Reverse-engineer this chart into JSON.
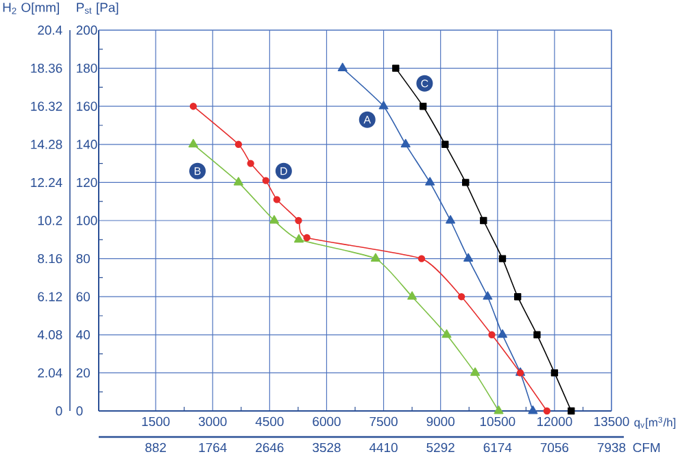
{
  "chart_data": {
    "type": "line",
    "xlabel": "q$_{v}$[m$^{3}$/h]",
    "ylabel": "P$_{st}$ [Pa]",
    "y2label": "H$_{2}$ O[mm]",
    "x2label": "CFM",
    "xlim": [
      0,
      13500
    ],
    "xticks": [
      1500,
      3000,
      4500,
      6000,
      7500,
      9000,
      10500,
      12000,
      13500
    ],
    "x2lim": [
      0,
      7938
    ],
    "x2ticks": [
      882,
      1764,
      2646,
      3528,
      4410,
      5292,
      6174,
      7056,
      7938
    ],
    "ylim": [
      0,
      200
    ],
    "yticks": [
      0,
      20,
      40,
      60,
      80,
      100,
      120,
      140,
      160,
      180,
      200
    ],
    "y2lim": [
      0,
      20.4
    ],
    "y2ticks": [
      0,
      2.04,
      4.08,
      6.12,
      8.16,
      10.2,
      12.24,
      14.28,
      16.32,
      18.36,
      20.4
    ],
    "grid": true,
    "series": [
      {
        "color": "#2f5fae",
        "marker": "triangle",
        "x": [
          6420,
          7500,
          8080,
          8720,
          9260,
          9730,
          10240,
          10630,
          11100,
          11430
        ],
        "values": [
          180,
          160,
          140,
          120,
          100,
          80,
          60,
          40,
          20,
          0
        ]
      },
      {
        "color": "#7cc043",
        "marker": "triangle",
        "x": [
          2490,
          3680,
          4620,
          5270,
          7290,
          8250,
          9160,
          9910,
          10530
        ],
        "values": [
          140,
          120,
          100,
          90,
          80,
          60,
          40,
          20,
          0
        ]
      },
      {
        "color": "#000000",
        "marker": "square",
        "x": [
          7820,
          8540,
          9120,
          9660,
          10130,
          10630,
          11030,
          11540,
          12000,
          12440
        ],
        "values": [
          180,
          160,
          140,
          120,
          100,
          80,
          60,
          40,
          20,
          0
        ]
      },
      {
        "color": "#e62b2b",
        "marker": "circle",
        "x": [
          2490,
          3680,
          4000,
          4400,
          4690,
          5260,
          5480,
          8500,
          9550,
          10350,
          11100,
          11800
        ],
        "values": [
          160,
          140,
          130,
          121,
          111,
          100,
          91,
          80,
          60,
          40,
          20,
          0
        ]
      }
    ],
    "annotations": [
      {
        "text": "A",
        "x": 7070,
        "y": 153
      },
      {
        "text": "B",
        "x": 2600,
        "y": 126
      },
      {
        "text": "C",
        "x": 8580,
        "y": 172
      },
      {
        "text": "D",
        "x": 4870,
        "y": 126
      }
    ]
  }
}
